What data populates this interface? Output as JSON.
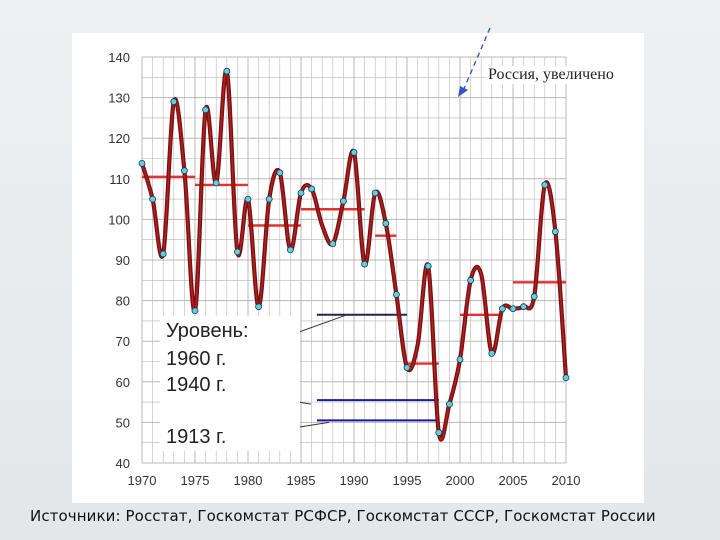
{
  "source_caption": "Источники: Росстат, Госкомстат РСФСР, Госкомстат СССР, Госкомстат России",
  "legend": {
    "title": "Уровень:",
    "items": [
      {
        "label": "1960 г.",
        "color": "#1a1a6e"
      },
      {
        "label": "1940 г.",
        "color": "#1a1a8e"
      },
      {
        "label": "1913 г.",
        "color": "#1a1a8e"
      }
    ]
  },
  "callout_text": "Россия, увеличено",
  "colors": {
    "line": "#7a1010",
    "line_highlight": "#b22222",
    "markers": "#5fd0e0",
    "averages": "#e53030",
    "levels": "#1a1aa0",
    "grid": "#b8b8b8",
    "callout_arrow": "#3355cc"
  },
  "chart_data": {
    "type": "line",
    "title": "",
    "xlabel": "",
    "ylabel": "",
    "xlim": [
      1970,
      2010
    ],
    "ylim": [
      40,
      140
    ],
    "x_ticks": [
      1970,
      1975,
      1980,
      1985,
      1990,
      1995,
      2000,
      2005,
      2010
    ],
    "y_ticks": [
      40,
      50,
      60,
      70,
      80,
      90,
      100,
      110,
      120,
      130,
      140
    ],
    "grid": true,
    "series": [
      {
        "x": [
          1970,
          1971,
          1972,
          1973,
          1974,
          1975,
          1976,
          1977,
          1978,
          1979,
          1980,
          1981,
          1982,
          1983,
          1984,
          1985,
          1986,
          1987,
          1988,
          1989,
          1990,
          1991,
          1992,
          1993,
          1994,
          1995,
          1996,
          1997,
          1998,
          1999,
          2000,
          2001,
          2002,
          2003,
          2004,
          2005,
          2006,
          2007,
          2008,
          2009,
          2010
        ],
        "y": [
          113.8,
          105,
          91.5,
          129,
          112,
          77.5,
          127,
          109,
          136.5,
          92,
          105,
          78.5,
          105,
          111.5,
          92.5,
          106.5,
          107.5,
          98.5,
          94,
          104.5,
          116.5,
          89,
          106.5,
          99,
          81.5,
          63.5,
          69,
          88.5,
          47.5,
          54.5,
          65.5,
          85,
          86.5,
          67,
          78,
          78,
          78.5,
          81,
          108.5,
          97,
          61
        ]
      }
    ],
    "period_averages": [
      {
        "from": 1970,
        "to": 1975,
        "value": 110.5
      },
      {
        "from": 1975,
        "to": 1980,
        "value": 108.5
      },
      {
        "from": 1980,
        "to": 1985,
        "value": 98.5
      },
      {
        "from": 1985,
        "to": 1991,
        "value": 102.5
      },
      {
        "from": 1992,
        "to": 1994,
        "value": 96
      },
      {
        "from": 1995,
        "to": 1998,
        "value": 64.5
      },
      {
        "from": 2000,
        "to": 2004,
        "value": 76.5
      },
      {
        "from": 2005,
        "to": 2010,
        "value": 84.5
      }
    ],
    "reference_levels": [
      {
        "label": "1960 г.",
        "value": 76.5,
        "from": 1986.5,
        "to": 1995
      },
      {
        "label": "1940 г.",
        "value": 55.5,
        "from": 1986.5,
        "to": 1998
      },
      {
        "label": "1913 г.",
        "value": 50.5,
        "from": 1986.5,
        "to": 1998
      }
    ],
    "annotations": [
      "Россия, увеличено"
    ]
  }
}
